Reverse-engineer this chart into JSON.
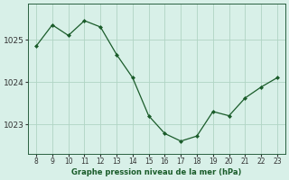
{
  "x": [
    8,
    9,
    10,
    11,
    12,
    13,
    14,
    15,
    16,
    17,
    18,
    19,
    20,
    21,
    22,
    23
  ],
  "y": [
    1024.85,
    1025.35,
    1025.1,
    1025.45,
    1025.3,
    1024.65,
    1024.1,
    1023.2,
    1022.78,
    1022.6,
    1022.72,
    1023.3,
    1023.2,
    1023.62,
    1023.88,
    1024.1
  ],
  "line_color": "#1a5c2a",
  "marker_color": "#1a5c2a",
  "bg_color": "#d8f0e8",
  "grid_color": "#b0d4c4",
  "xlabel": "Graphe pression niveau de la mer (hPa)",
  "xlabel_color": "#1a5c2a",
  "yticks": [
    1023,
    1024,
    1025
  ],
  "xticks": [
    8,
    9,
    10,
    11,
    12,
    13,
    14,
    15,
    16,
    17,
    18,
    19,
    20,
    21,
    22,
    23
  ],
  "ylim": [
    1022.3,
    1025.85
  ],
  "xlim": [
    7.5,
    23.5
  ]
}
